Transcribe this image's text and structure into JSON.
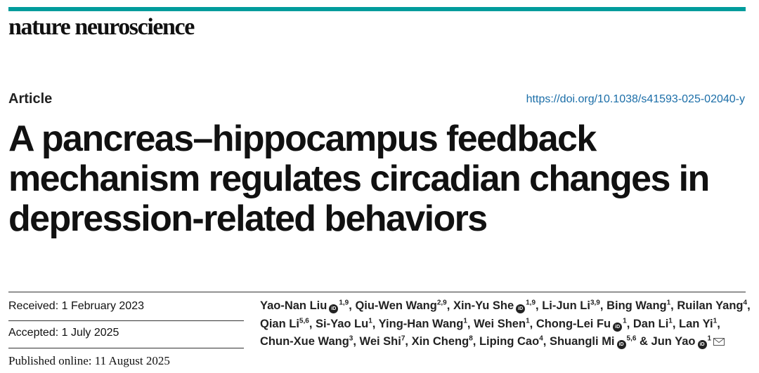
{
  "journal": "nature neuroscience",
  "article_type": "Article",
  "doi": "https://doi.org/10.1038/s41593-025-02040-y",
  "title_lines": [
    "A pancreas–hippocampus feedback",
    "mechanism regulates circadian changes in",
    "depression-related behaviors"
  ],
  "dates": {
    "received": "Received: 1 February 2023",
    "accepted": "Accepted: 1 July 2025",
    "published": "Published online: 11 August 2025"
  },
  "authors": [
    {
      "name": "Yao-Nan Liu",
      "sup": "1,9",
      "orcid": true,
      "sep": ","
    },
    {
      "name": "Qiu-Wen Wang",
      "sup": "2,9",
      "orcid": false,
      "sep": ","
    },
    {
      "name": "Xin-Yu She",
      "sup": "1,9",
      "orcid": true,
      "sep": ","
    },
    {
      "name": "Li-Jun Li",
      "sup": "3,9",
      "orcid": false,
      "sep": ","
    },
    {
      "name": "Bing Wang",
      "sup": "1",
      "orcid": false,
      "sep": ","
    },
    {
      "name": "Ruilan Yang",
      "sup": "4",
      "orcid": false,
      "sep": ","
    },
    {
      "name": "Qian Li",
      "sup": "5,6",
      "orcid": false,
      "sep": ","
    },
    {
      "name": "Si-Yao Lu",
      "sup": "1",
      "orcid": false,
      "sep": ","
    },
    {
      "name": "Ying-Han Wang",
      "sup": "1",
      "orcid": false,
      "sep": ","
    },
    {
      "name": "Wei Shen",
      "sup": "1",
      "orcid": false,
      "sep": ","
    },
    {
      "name": "Chong-Lei Fu",
      "sup": "1",
      "orcid": true,
      "sep": ","
    },
    {
      "name": "Dan Li",
      "sup": "1",
      "orcid": false,
      "sep": ","
    },
    {
      "name": "Lan Yi",
      "sup": "1",
      "orcid": false,
      "sep": ","
    },
    {
      "name": "Chun-Xue Wang",
      "sup": "3",
      "orcid": false,
      "sep": ","
    },
    {
      "name": "Wei Shi",
      "sup": "7",
      "orcid": false,
      "sep": ","
    },
    {
      "name": "Xin Cheng",
      "sup": "8",
      "orcid": false,
      "sep": ","
    },
    {
      "name": "Liping Cao",
      "sup": "4",
      "orcid": false,
      "sep": ","
    },
    {
      "name": "Shuangli Mi",
      "sup": "5,6",
      "orcid": true,
      "sep": " &"
    },
    {
      "name": "Jun Yao",
      "sup": "1",
      "orcid": true,
      "sep": "",
      "email": true
    }
  ],
  "icons": {
    "orcid": "orcid-icon",
    "email": "envelope-icon"
  },
  "colors": {
    "accent": "#009c9c",
    "doi_link": "#1b6ea8"
  }
}
